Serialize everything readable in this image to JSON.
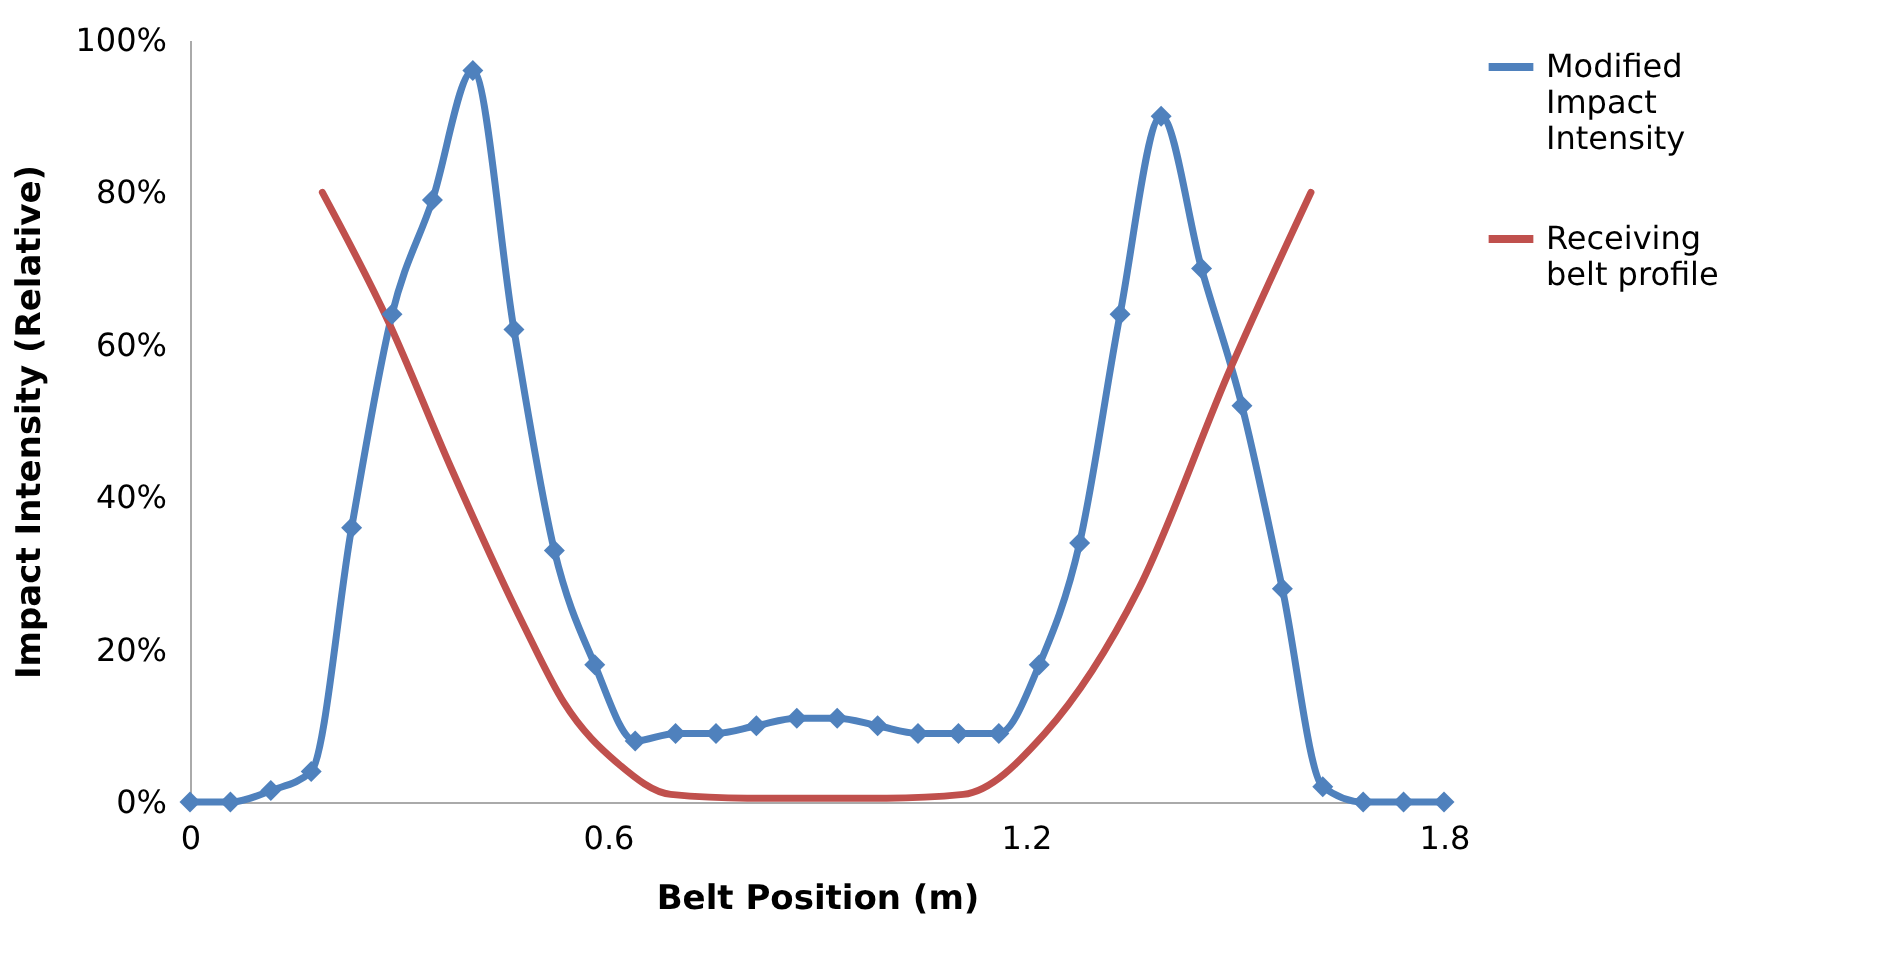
{
  "chart_data": {
    "type": "line",
    "xlabel": "Belt Position (m)",
    "ylabel": "Impact Intensity (Relative)",
    "xlim": [
      0,
      1.8
    ],
    "xticks": [
      0,
      0.6,
      1.2,
      1.8
    ],
    "ylim": [
      0,
      100
    ],
    "yticks": [
      {
        "value": 0,
        "label": "0%"
      },
      {
        "value": 20,
        "label": "20%"
      },
      {
        "value": 40,
        "label": "40%"
      },
      {
        "value": 60,
        "label": "60%"
      },
      {
        "value": 80,
        "label": "80%"
      },
      {
        "value": 100,
        "label": "100%"
      }
    ],
    "grid": false,
    "legend": "right",
    "series": [
      {
        "name": "Modified Impact Intensity",
        "color": "#4f81bd",
        "marker": "diamond",
        "x": [
          0,
          0.058,
          0.116,
          0.174,
          0.232,
          0.29,
          0.348,
          0.406,
          0.465,
          0.523,
          0.581,
          0.639,
          0.697,
          0.755,
          0.813,
          0.871,
          0.929,
          0.987,
          1.045,
          1.103,
          1.161,
          1.219,
          1.277,
          1.335,
          1.394,
          1.452,
          1.51,
          1.568,
          1.626,
          1.684,
          1.742,
          1.8
        ],
        "values": [
          0,
          0,
          1.5,
          4,
          36,
          64,
          79,
          96,
          62,
          33,
          18,
          8,
          9,
          9,
          10,
          11,
          11,
          10,
          9,
          9,
          9,
          18,
          34,
          64,
          90,
          70,
          52,
          28,
          2,
          0,
          0,
          0
        ]
      },
      {
        "name": "Receiving belt profile",
        "color": "#c0504d",
        "marker": "none",
        "x": [
          0.19,
          0.285,
          0.374,
          0.48,
          0.537,
          0.615,
          0.69,
          0.8,
          0.9,
          1.0,
          1.11,
          1.227,
          1.362,
          1.494,
          1.609
        ],
        "values": [
          80,
          63,
          44,
          23,
          13,
          5,
          1,
          0.5,
          0.5,
          0.5,
          1,
          9,
          28,
          57,
          80
        ]
      }
    ]
  }
}
